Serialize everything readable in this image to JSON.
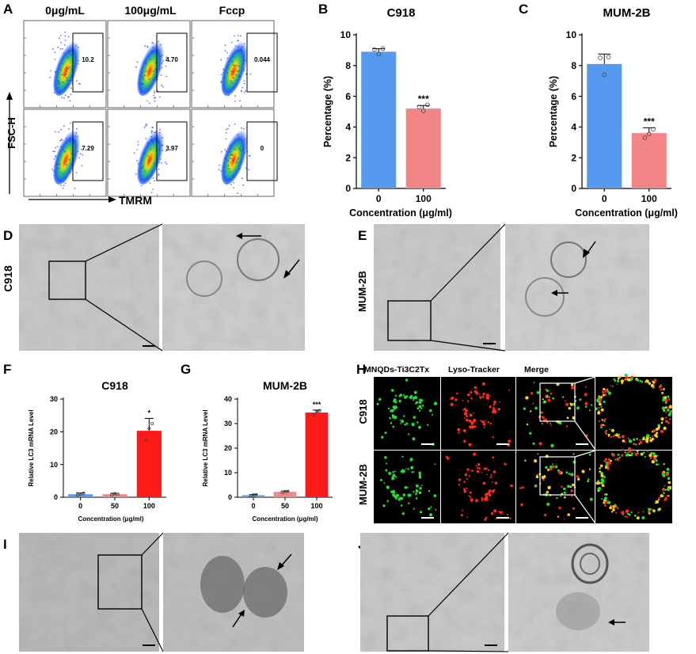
{
  "panels": {
    "A": "A",
    "B": "B",
    "C": "C",
    "D": "D",
    "E": "E",
    "F": "F",
    "G": "G",
    "H": "H",
    "I": "I",
    "J": "J"
  },
  "flow": {
    "col_headers": [
      "0μg/mL",
      "100μg/mL",
      "Fccp"
    ],
    "gate_values": [
      [
        "10.2",
        "4.70",
        "0.044"
      ],
      [
        "7.29",
        "3.97",
        "0"
      ]
    ],
    "y_axis": "FSC-H",
    "x_axis": "TMRM"
  },
  "tem": {
    "d_label": "C918",
    "e_label": "MUM-2B"
  },
  "fluor": {
    "col_headers": [
      "MNQDs-Ti3C2Tx",
      "Lyso-Tracker",
      "Merge"
    ],
    "row_labels": [
      "C918",
      "MUM-2B"
    ]
  },
  "chart_data": [
    {
      "panel": "B",
      "type": "bar",
      "title": "C918",
      "xlabel": "Concentration (μg/ml)",
      "ylabel": "Percentage (%)",
      "categories": [
        "0",
        "100"
      ],
      "values": [
        8.9,
        5.2
      ],
      "errors": [
        0.2,
        0.2
      ],
      "points": [
        [
          9.05,
          8.75,
          9.1
        ],
        [
          5.3,
          5.05,
          5.45
        ]
      ],
      "colors": [
        "#5599f0",
        "#f28585"
      ],
      "significance": [
        "",
        "***"
      ],
      "ylim": [
        0,
        10
      ],
      "yticks": [
        0,
        2,
        4,
        6,
        8,
        10
      ]
    },
    {
      "panel": "C",
      "type": "bar",
      "title": "MUM-2B",
      "xlabel": "Concentration (μg/ml)",
      "ylabel": "Percentage (%)",
      "categories": [
        "0",
        "100"
      ],
      "values": [
        8.1,
        3.6
      ],
      "errors": [
        0.65,
        0.35
      ],
      "points": [
        [
          8.5,
          7.4,
          8.55
        ],
        [
          3.3,
          3.55,
          3.85
        ]
      ],
      "colors": [
        "#5599f0",
        "#f28585"
      ],
      "significance": [
        "",
        "***"
      ],
      "ylim": [
        0,
        10
      ],
      "yticks": [
        0,
        2,
        4,
        6,
        8,
        10
      ]
    },
    {
      "panel": "F",
      "type": "bar",
      "title": "C918",
      "xlabel": "Concentration (μg/ml)",
      "ylabel": "Relative LC3 mRNA Level",
      "categories": [
        "0",
        "50",
        "100"
      ],
      "values": [
        0.9,
        0.9,
        20.3
      ],
      "errors": [
        0.4,
        0.3,
        3.8
      ],
      "points": [
        [
          0.6,
          1.0,
          1.2
        ],
        [
          0.7,
          1.1,
          0.9
        ],
        [
          17.5,
          21.0,
          22.5
        ]
      ],
      "colors": [
        "#5599f0",
        "#f28585",
        "#ff1a1a"
      ],
      "significance": [
        "",
        "",
        "*"
      ],
      "ylim": [
        0,
        30
      ],
      "yticks": [
        0,
        10,
        20,
        30
      ]
    },
    {
      "panel": "G",
      "type": "bar",
      "title": "MUM-2B",
      "xlabel": "Concentration (μg/ml)",
      "ylabel": "Relative LC3 mRNA Level",
      "categories": [
        "0",
        "50",
        "100"
      ],
      "values": [
        0.8,
        2.2,
        34.5
      ],
      "errors": [
        0.3,
        0.3,
        1.0
      ],
      "points": [
        [
          0.6,
          0.9,
          1.0
        ],
        [
          2.0,
          2.3,
          2.4
        ],
        [
          33.5,
          34.8,
          35.3
        ]
      ],
      "colors": [
        "#5599f0",
        "#f28585",
        "#ff1a1a"
      ],
      "significance": [
        "",
        "",
        "***"
      ],
      "ylim": [
        0,
        40
      ],
      "yticks": [
        0,
        10,
        20,
        30,
        40
      ]
    }
  ]
}
